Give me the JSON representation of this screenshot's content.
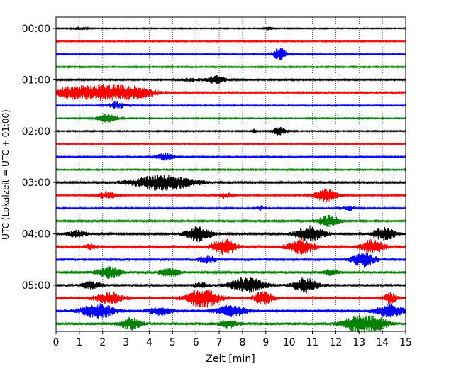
{
  "chart_data": {
    "type": "line",
    "xlabel": "Zeit  [min]",
    "ylabel": "UTC (Lokalzeit = UTC + 01:00)",
    "xlim": [
      0,
      15
    ],
    "x_ticks": [
      "0",
      "1",
      "2",
      "3",
      "4",
      "5",
      "6",
      "7",
      "8",
      "9",
      "10",
      "11",
      "12",
      "13",
      "14",
      "15"
    ],
    "y_tick_labels": [
      "00:00",
      "01:00",
      "02:00",
      "03:00",
      "04:00",
      "05:00"
    ],
    "grid": "vertical dotted",
    "colors": [
      "#000000",
      "#ff0000",
      "#0000ff",
      "#008000"
    ],
    "rows": [
      {
        "start": "00:00",
        "color": "#000000",
        "noise": 0.8,
        "events": [
          [
            1.0,
            0.3,
            2
          ],
          [
            9.1,
            0.2,
            2
          ]
        ]
      },
      {
        "start": "00:15",
        "color": "#ff0000",
        "noise": 0.9,
        "events": []
      },
      {
        "start": "00:30",
        "color": "#0000ff",
        "noise": 0.9,
        "events": [
          [
            9.6,
            0.3,
            9
          ]
        ]
      },
      {
        "start": "00:45",
        "color": "#008000",
        "noise": 1.0,
        "events": []
      },
      {
        "start": "01:00",
        "color": "#000000",
        "noise": 1.1,
        "events": [
          [
            5.8,
            0.5,
            2
          ],
          [
            6.9,
            0.4,
            6
          ]
        ]
      },
      {
        "start": "01:15",
        "color": "#ff0000",
        "noise": 1.2,
        "events": [
          [
            2.2,
            1.6,
            11
          ],
          [
            0.6,
            0.6,
            5
          ],
          [
            3.6,
            0.7,
            3
          ]
        ]
      },
      {
        "start": "01:30",
        "color": "#0000ff",
        "noise": 0.9,
        "events": [
          [
            2.6,
            0.4,
            5
          ]
        ]
      },
      {
        "start": "01:45",
        "color": "#008000",
        "noise": 0.9,
        "events": [
          [
            2.2,
            0.4,
            6
          ]
        ]
      },
      {
        "start": "02:00",
        "color": "#000000",
        "noise": 0.9,
        "events": [
          [
            9.6,
            0.3,
            6
          ],
          [
            8.5,
            0.1,
            3
          ]
        ]
      },
      {
        "start": "02:15",
        "color": "#ff0000",
        "noise": 0.9,
        "events": []
      },
      {
        "start": "02:30",
        "color": "#0000ff",
        "noise": 1.0,
        "events": [
          [
            4.7,
            0.4,
            5
          ]
        ]
      },
      {
        "start": "02:45",
        "color": "#008000",
        "noise": 1.0,
        "events": []
      },
      {
        "start": "03:00",
        "color": "#000000",
        "noise": 1.3,
        "events": [
          [
            4.6,
            1.3,
            11
          ]
        ]
      },
      {
        "start": "03:15",
        "color": "#ff0000",
        "noise": 1.0,
        "events": [
          [
            11.6,
            0.5,
            9
          ],
          [
            2.2,
            0.4,
            5
          ],
          [
            7.3,
            0.3,
            4
          ]
        ]
      },
      {
        "start": "03:30",
        "color": "#0000ff",
        "noise": 1.0,
        "events": [
          [
            8.8,
            0.1,
            4
          ],
          [
            12.6,
            0.3,
            3
          ]
        ]
      },
      {
        "start": "03:45",
        "color": "#008000",
        "noise": 1.2,
        "events": [
          [
            11.7,
            0.5,
            8
          ]
        ]
      },
      {
        "start": "04:00",
        "color": "#000000",
        "noise": 1.3,
        "events": [
          [
            6.1,
            0.6,
            10
          ],
          [
            10.9,
            0.6,
            11
          ],
          [
            14.1,
            0.5,
            9
          ],
          [
            0.9,
            0.4,
            5
          ]
        ]
      },
      {
        "start": "04:15",
        "color": "#ff0000",
        "noise": 1.4,
        "events": [
          [
            7.2,
            0.5,
            12
          ],
          [
            10.5,
            0.6,
            10
          ],
          [
            13.6,
            0.5,
            10
          ],
          [
            1.5,
            0.3,
            4
          ]
        ]
      },
      {
        "start": "04:30",
        "color": "#0000ff",
        "noise": 1.5,
        "events": [
          [
            13.2,
            0.5,
            10
          ],
          [
            6.5,
            0.4,
            5
          ]
        ]
      },
      {
        "start": "04:45",
        "color": "#008000",
        "noise": 1.7,
        "events": [
          [
            2.3,
            0.5,
            8
          ],
          [
            4.9,
            0.4,
            7
          ],
          [
            11.8,
            0.3,
            4
          ]
        ]
      },
      {
        "start": "05:00",
        "color": "#000000",
        "noise": 1.7,
        "events": [
          [
            8.2,
            0.7,
            11
          ],
          [
            10.7,
            0.5,
            10
          ],
          [
            1.5,
            0.4,
            5
          ],
          [
            6.2,
            0.3,
            4
          ]
        ]
      },
      {
        "start": "05:15",
        "color": "#ff0000",
        "noise": 1.8,
        "events": [
          [
            6.3,
            0.7,
            13
          ],
          [
            8.9,
            0.4,
            9
          ],
          [
            2.3,
            0.6,
            8
          ],
          [
            14.3,
            0.3,
            7
          ]
        ]
      },
      {
        "start": "05:30",
        "color": "#0000ff",
        "noise": 1.8,
        "events": [
          [
            1.8,
            0.7,
            10
          ],
          [
            7.5,
            0.6,
            8
          ],
          [
            14.3,
            0.6,
            9
          ],
          [
            4.5,
            0.5,
            5
          ]
        ]
      },
      {
        "start": "05:45",
        "color": "#008000",
        "noise": 2.0,
        "events": [
          [
            3.2,
            0.4,
            8
          ],
          [
            12.9,
            0.6,
            10
          ],
          [
            13.7,
            0.5,
            9
          ],
          [
            7.4,
            0.4,
            5
          ]
        ]
      }
    ]
  }
}
